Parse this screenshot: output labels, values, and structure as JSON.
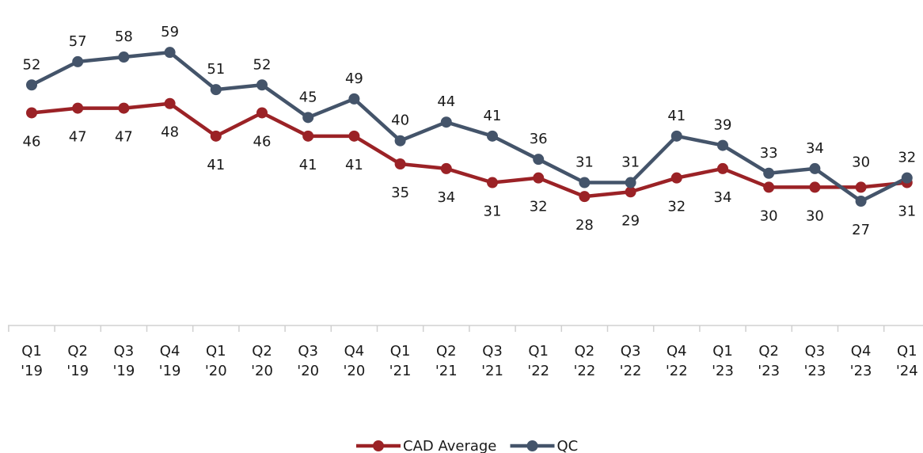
{
  "chart_data": {
    "type": "line",
    "categories": [
      [
        "Q1",
        "'19"
      ],
      [
        "Q2",
        "'19"
      ],
      [
        "Q3",
        "'19"
      ],
      [
        "Q4",
        "'19"
      ],
      [
        "Q1",
        "'20"
      ],
      [
        "Q2",
        "'20"
      ],
      [
        "Q3",
        "'20"
      ],
      [
        "Q4",
        "'20"
      ],
      [
        "Q1",
        "'21"
      ],
      [
        "Q2",
        "'21"
      ],
      [
        "Q3",
        "'21"
      ],
      [
        "Q1",
        "'22"
      ],
      [
        "Q2",
        "'22"
      ],
      [
        "Q3",
        "'22"
      ],
      [
        "Q4",
        "'22"
      ],
      [
        "Q1",
        "'23"
      ],
      [
        "Q2",
        "'23"
      ],
      [
        "Q3",
        "'23"
      ],
      [
        "Q4",
        "'23"
      ],
      [
        "Q1",
        "'24"
      ]
    ],
    "series": [
      {
        "name": "CAD Average",
        "color": "#9b2226",
        "values": [
          46,
          47,
          47,
          48,
          41,
          46,
          41,
          41,
          35,
          34,
          31,
          32,
          28,
          29,
          32,
          34,
          30,
          30,
          30,
          31
        ],
        "labels": [
          "46",
          "47",
          "47",
          "48",
          "41",
          "46",
          "41",
          "41",
          "35",
          "34",
          "31",
          "32",
          "28",
          "29",
          "32",
          "34",
          "30",
          "30",
          "",
          "31"
        ],
        "label_position": "below"
      },
      {
        "name": "QC",
        "color": "#44546a",
        "values": [
          52,
          57,
          58,
          59,
          51,
          52,
          45,
          49,
          40,
          44,
          41,
          36,
          31,
          31,
          41,
          39,
          33,
          34,
          27,
          32
        ],
        "labels": [
          "52",
          "57",
          "58",
          "59",
          "51",
          "52",
          "45",
          "49",
          "40",
          "44",
          "41",
          "36",
          "31",
          "31",
          "41",
          "39",
          "33",
          "34",
          "27",
          "32"
        ],
        "label_position": "above"
      }
    ],
    "extra_labels": [
      {
        "category_index": 18,
        "text": "30",
        "series": "CAD Average",
        "position": "above"
      }
    ],
    "ylim": [
      0,
      70
    ],
    "grid": false,
    "legend": "bottom-center"
  }
}
